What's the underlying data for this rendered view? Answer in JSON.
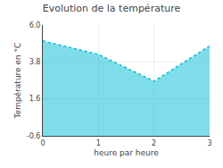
{
  "chart_data": {
    "type": "area",
    "title": "Evolution de la température",
    "xlabel": "heure par heure",
    "ylabel": "Température en °C",
    "x": [
      0,
      1,
      2,
      3
    ],
    "values": [
      5.05,
      4.25,
      2.65,
      4.75
    ],
    "color": "#00bcd4",
    "line_style": "dotted",
    "xlim": [
      0,
      3
    ],
    "ylim": [
      -0.6,
      6.0
    ],
    "xticks": [
      0,
      1,
      2,
      3
    ],
    "yticks": [
      -0.6,
      1.6,
      3.8,
      {
        "value": 6.0,
        "label": "6.0"
      }
    ],
    "grid": true
  }
}
